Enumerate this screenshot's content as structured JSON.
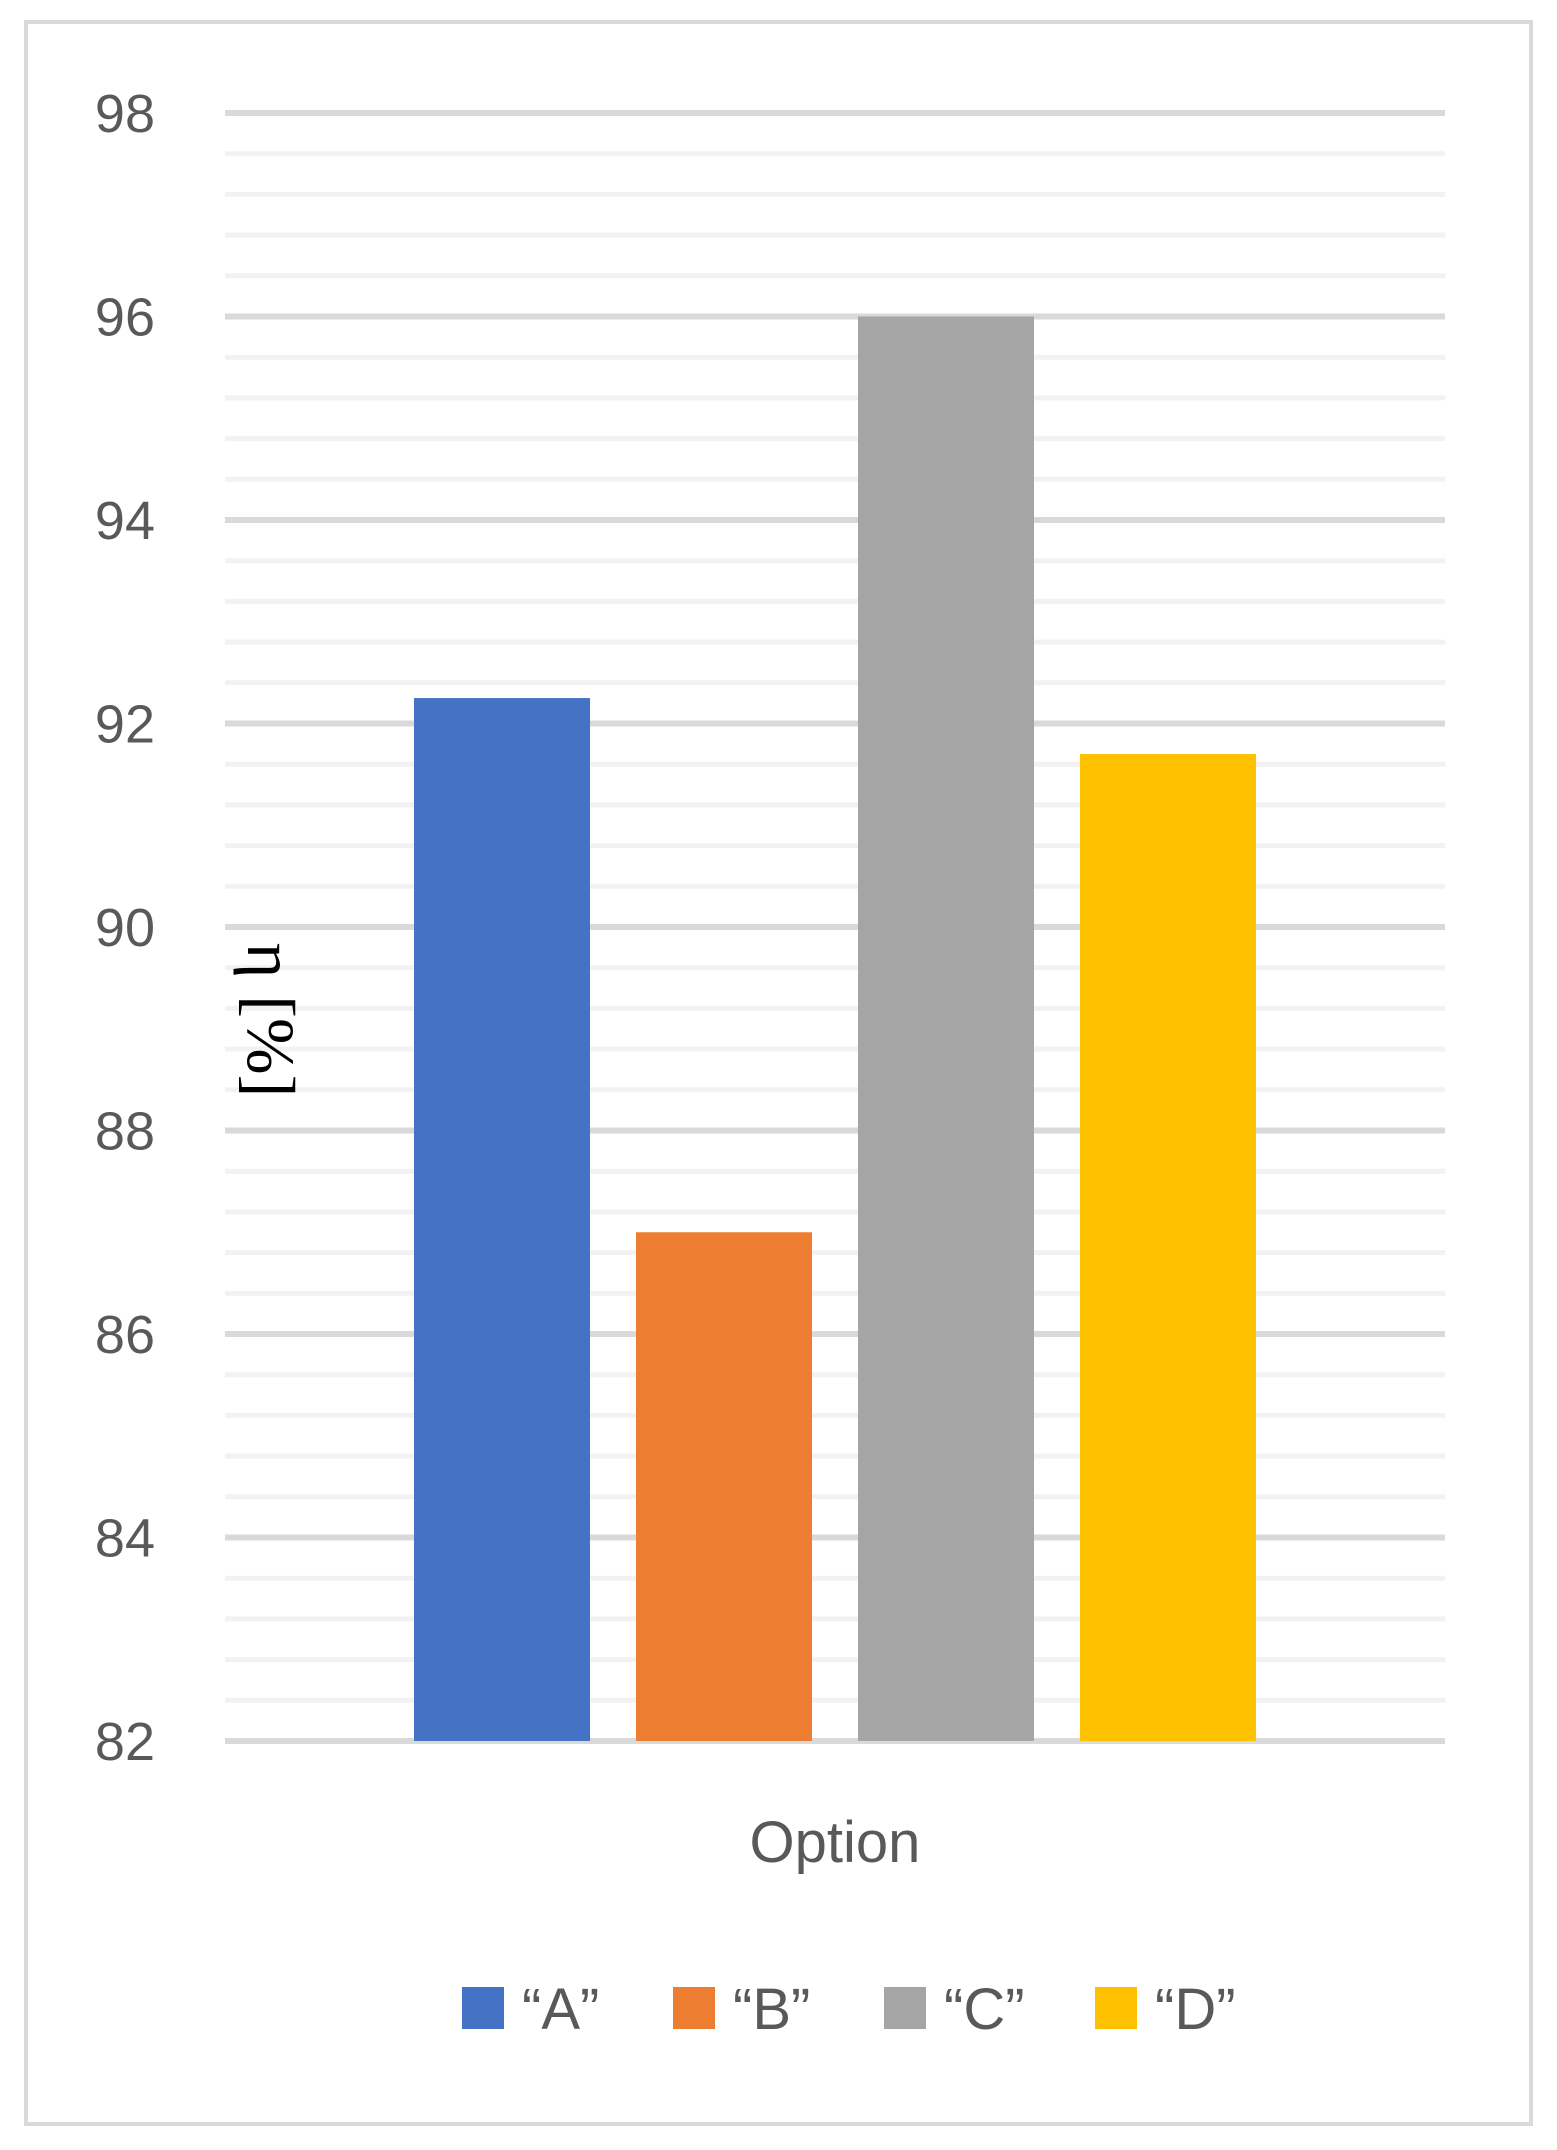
{
  "chart_data": {
    "type": "bar",
    "categories": [
      "Option"
    ],
    "series": [
      {
        "name": "“A”",
        "values": [
          92.25
        ],
        "color": "#4472C4"
      },
      {
        "name": "“B”",
        "values": [
          87.0
        ],
        "color": "#ED7D31"
      },
      {
        "name": "“C”",
        "values": [
          96.0
        ],
        "color": "#A5A5A5"
      },
      {
        "name": "“D”",
        "values": [
          91.7
        ],
        "color": "#FFC000"
      }
    ],
    "xlabel": "Option",
    "ylabel": "η [%]",
    "ylim": [
      82,
      98
    ],
    "yticks": [
      82,
      84,
      86,
      88,
      90,
      92,
      94,
      96,
      98
    ],
    "major_step": 2,
    "minor_step": 0.4,
    "grid": true,
    "legend": "bottom",
    "colors": {
      "major_grid": "#d9d9d9",
      "minor_grid": "#f2f2f2",
      "text": "#595959"
    }
  }
}
